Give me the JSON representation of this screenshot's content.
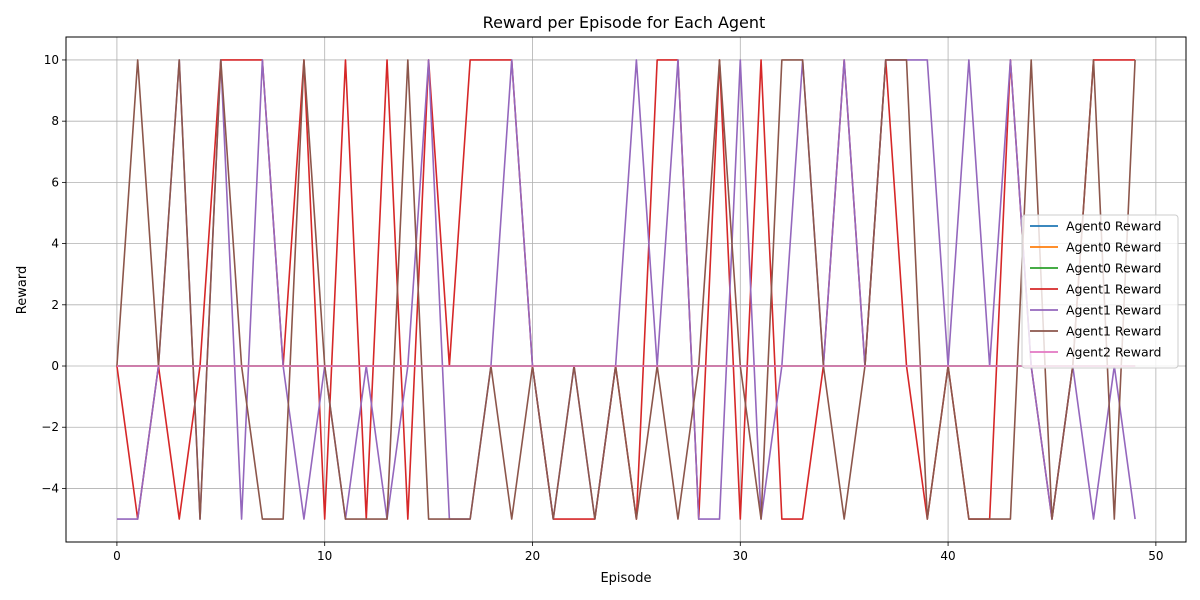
{
  "chart_data": {
    "type": "line",
    "title": "Reward per Episode for Each Agent",
    "xlabel": "Episode",
    "ylabel": "Reward",
    "xlim": [
      -2.45,
      51.45
    ],
    "ylim": [
      -5.75,
      10.75
    ],
    "xticks": [
      0,
      10,
      20,
      30,
      40,
      50
    ],
    "yticks": [
      -4,
      -2,
      0,
      2,
      4,
      6,
      8,
      10
    ],
    "grid": true,
    "legend_position": "center-right",
    "x": [
      0,
      1,
      2,
      3,
      4,
      5,
      6,
      7,
      8,
      9,
      10,
      11,
      12,
      13,
      14,
      15,
      16,
      17,
      18,
      19,
      20,
      21,
      22,
      23,
      24,
      25,
      26,
      27,
      28,
      29,
      30,
      31,
      32,
      33,
      34,
      35,
      36,
      37,
      38,
      39,
      40,
      41,
      42,
      43,
      44,
      45,
      46,
      47,
      48,
      49
    ],
    "series": [
      {
        "name": "Agent0 Reward",
        "color": "#1f77b4",
        "values": [
          0,
          0,
          0,
          0,
          0,
          0,
          0,
          0,
          0,
          0,
          0,
          0,
          0,
          0,
          0,
          0,
          0,
          0,
          0,
          0,
          0,
          0,
          0,
          0,
          0,
          0,
          0,
          0,
          0,
          0,
          0,
          0,
          0,
          0,
          0,
          0,
          0,
          0,
          0,
          0,
          0,
          0,
          0,
          0,
          0,
          0,
          0,
          0,
          0,
          0
        ]
      },
      {
        "name": "Agent0 Reward",
        "color": "#ff7f0e",
        "values": [
          0,
          0,
          0,
          0,
          0,
          0,
          0,
          0,
          0,
          0,
          0,
          0,
          0,
          0,
          0,
          0,
          0,
          0,
          0,
          0,
          0,
          0,
          0,
          0,
          0,
          0,
          0,
          0,
          0,
          0,
          0,
          0,
          0,
          0,
          0,
          0,
          0,
          0,
          0,
          0,
          0,
          0,
          0,
          0,
          0,
          0,
          0,
          0,
          0,
          0
        ]
      },
      {
        "name": "Agent0 Reward",
        "color": "#2ca02c",
        "values": [
          0,
          0,
          0,
          0,
          0,
          0,
          0,
          0,
          0,
          0,
          0,
          0,
          0,
          0,
          0,
          0,
          0,
          0,
          0,
          0,
          0,
          0,
          0,
          0,
          0,
          0,
          0,
          0,
          0,
          0,
          0,
          0,
          0,
          0,
          0,
          0,
          0,
          0,
          0,
          0,
          0,
          0,
          0,
          0,
          0,
          0,
          0,
          0,
          0,
          0
        ]
      },
      {
        "name": "Agent1 Reward",
        "color": "#d62728",
        "values": [
          0,
          -5,
          0,
          -5,
          0,
          10,
          10,
          10,
          0,
          10,
          -5,
          10,
          -5,
          10,
          -5,
          10,
          0,
          10,
          10,
          10,
          0,
          -5,
          -5,
          -5,
          0,
          -5,
          10,
          10,
          -5,
          10,
          -5,
          10,
          -5,
          -5,
          0,
          10,
          0,
          10,
          0,
          -5,
          0,
          -5,
          -5,
          10,
          0,
          -5,
          0,
          10,
          10,
          10
        ]
      },
      {
        "name": "Agent1 Reward",
        "color": "#9467bd",
        "values": [
          -5,
          -5,
          0,
          10,
          -5,
          10,
          -5,
          10,
          0,
          -5,
          0,
          -5,
          0,
          -5,
          0,
          10,
          -5,
          -5,
          0,
          10,
          0,
          -5,
          0,
          -5,
          0,
          10,
          0,
          10,
          -5,
          -5,
          10,
          -5,
          0,
          10,
          0,
          10,
          0,
          10,
          10,
          10,
          0,
          10,
          0,
          10,
          0,
          -5,
          0,
          -5,
          0,
          -5
        ]
      },
      {
        "name": "Agent1 Reward",
        "color": "#8c564b",
        "values": [
          0,
          10,
          0,
          10,
          -5,
          10,
          0,
          -5,
          -5,
          10,
          0,
          -5,
          -5,
          -5,
          10,
          -5,
          -5,
          -5,
          0,
          -5,
          0,
          -5,
          0,
          -5,
          0,
          -5,
          0,
          -5,
          0,
          10,
          0,
          -5,
          10,
          10,
          0,
          -5,
          0,
          10,
          10,
          -5,
          0,
          -5,
          -5,
          -5,
          10,
          -5,
          0,
          10,
          -5,
          10
        ]
      },
      {
        "name": "Agent2 Reward",
        "color": "#e377c2",
        "values": [
          0,
          0,
          0,
          0,
          0,
          0,
          0,
          0,
          0,
          0,
          0,
          0,
          0,
          0,
          0,
          0,
          0,
          0,
          0,
          0,
          0,
          0,
          0,
          0,
          0,
          0,
          0,
          0,
          0,
          0,
          0,
          0,
          0,
          0,
          0,
          0,
          0,
          0,
          0,
          0,
          0,
          0,
          0,
          0,
          0,
          0,
          0,
          0,
          0,
          0
        ]
      }
    ]
  }
}
